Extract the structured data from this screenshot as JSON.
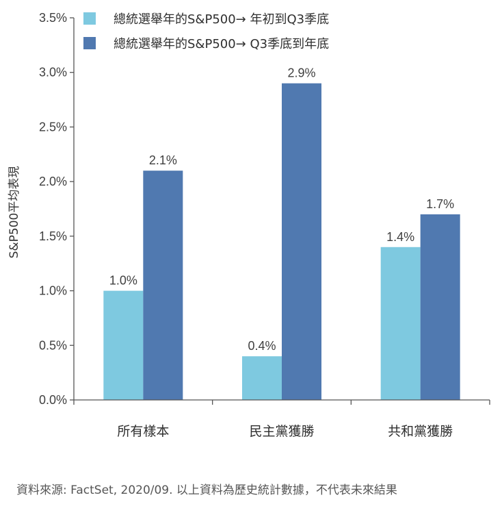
{
  "chart_data": {
    "type": "bar",
    "categories": [
      "所有樣本",
      "民主黨獲勝",
      "共和黨獲勝"
    ],
    "series": [
      {
        "name": "總統選舉年的S&P500→ 年初到Q3季底",
        "values": [
          1.0,
          0.4,
          1.4
        ],
        "labels": [
          "1.0%",
          "0.4%",
          "1.4%"
        ],
        "color": "#7ec9e0"
      },
      {
        "name": "總統選舉年的S&P500→ Q3季底到年底",
        "values": [
          2.1,
          2.9,
          1.7
        ],
        "labels": [
          "2.1%",
          "2.9%",
          "1.7%"
        ],
        "color": "#5079b0"
      }
    ],
    "ylabel": "S&P500平均表現",
    "ylim": [
      0,
      3.5
    ],
    "yticks": [
      0,
      0.5,
      1.0,
      1.5,
      2.0,
      2.5,
      3.0,
      3.5
    ],
    "ytick_labels": [
      "0.0%",
      "0.5%",
      "1.0%",
      "1.5%",
      "2.0%",
      "2.5%",
      "3.0%",
      "3.5%"
    ],
    "legend_position": "top",
    "grid": false
  },
  "source_note": "資料來源: FactSet, 2020/09. 以上資料為歷史統計數據，不代表未來結果"
}
